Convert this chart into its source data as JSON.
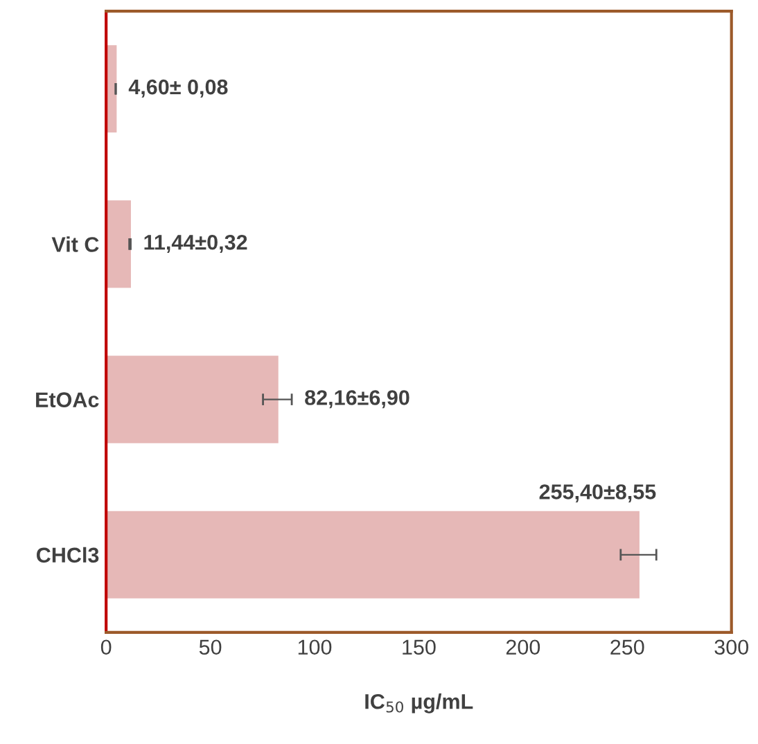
{
  "chart_data": {
    "type": "bar",
    "orientation": "horizontal",
    "categories": [
      null,
      "Vit C",
      "EtOAc",
      "CHCl3"
    ],
    "values": [
      4.6,
      11.44,
      82.16,
      255.4
    ],
    "errors": [
      0.08,
      0.32,
      6.9,
      8.55
    ],
    "value_labels": [
      "4,60± 0,08",
      "11,44±0,32",
      "82,16±6,90",
      "255,40±8,55"
    ],
    "color": "#e6b8b7",
    "xlabel": "IC$_{50}$ µg/mL",
    "xlim": [
      0,
      300
    ],
    "xticks": [
      0,
      50,
      100,
      150,
      200,
      250,
      300
    ],
    "grid": false,
    "legend": false
  }
}
